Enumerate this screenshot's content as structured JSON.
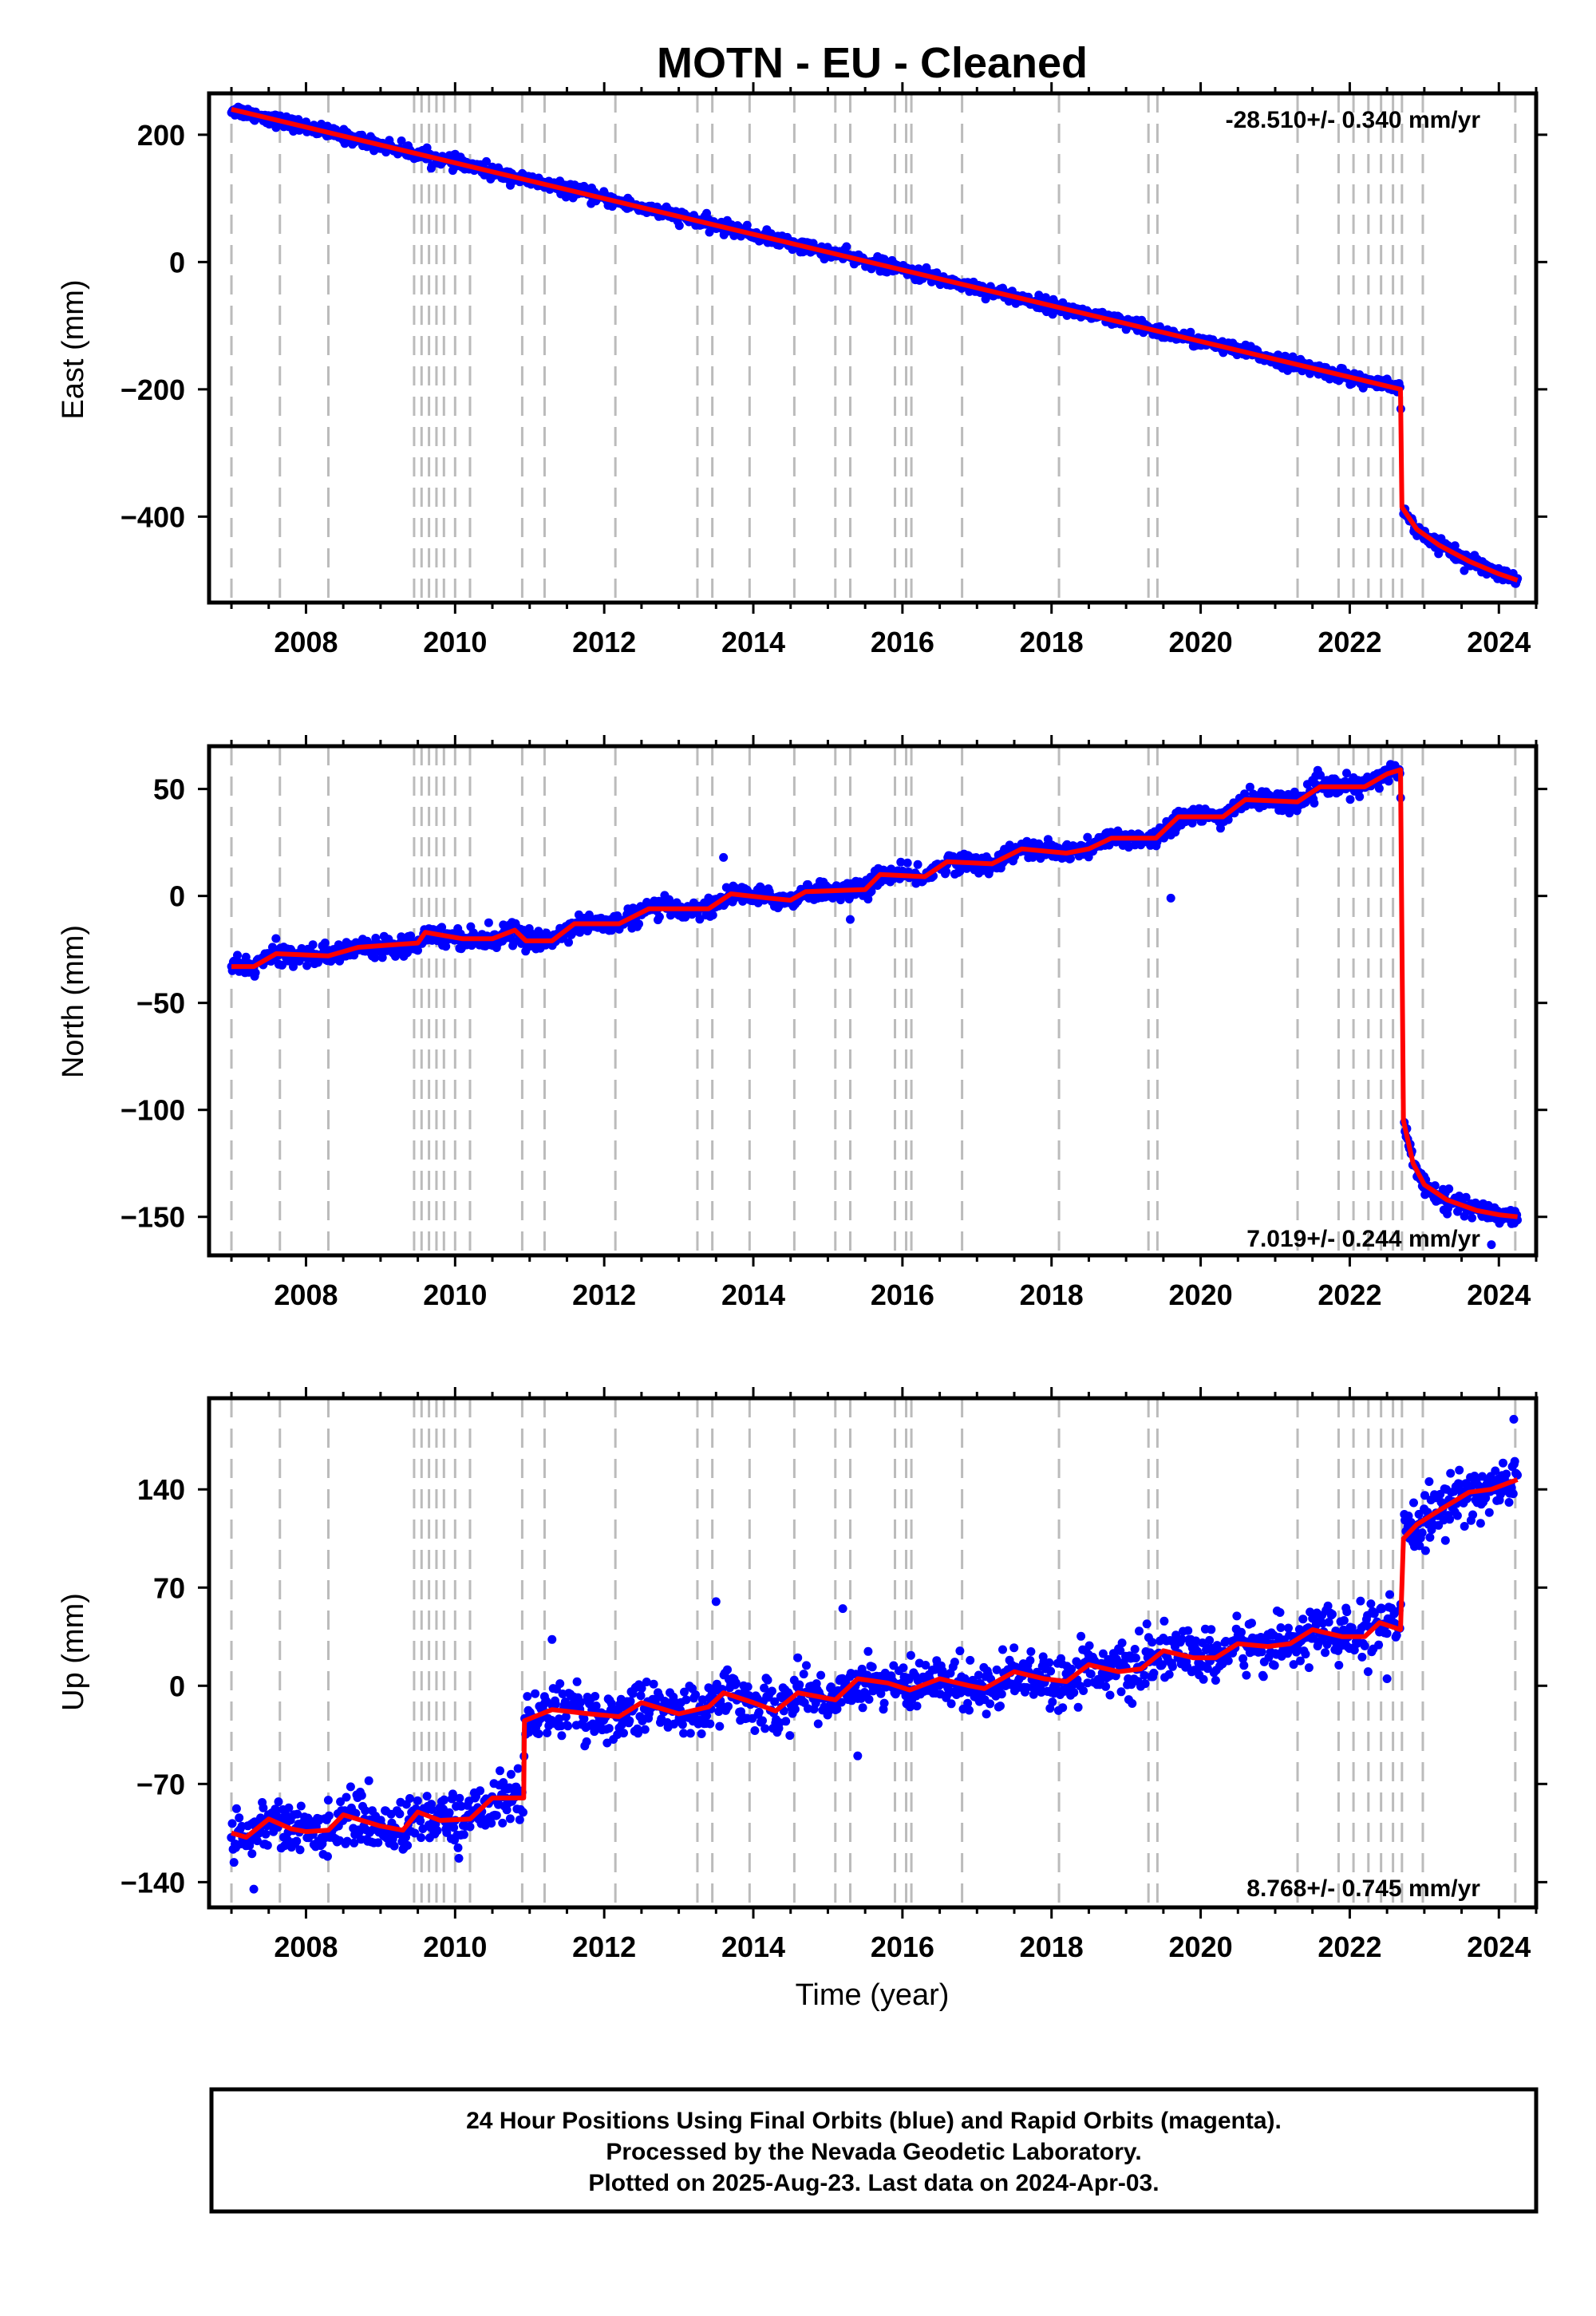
{
  "figure": {
    "title": "MOTN  - EU - Cleaned",
    "xlabel": "Time (year)",
    "footer": [
      "24 Hour Positions Using Final Orbits (blue) and Rapid Orbits (magenta).",
      "Processed by the Nevada Geodetic Laboratory.",
      "Plotted on 2025-Aug-23. Last data on 2024-Apr-03."
    ],
    "colors": {
      "data": "#0000ff",
      "model": "#ff0000",
      "event_lines": "#bbbbbb",
      "axes": "#000000"
    }
  },
  "chart_data": [
    {
      "type": "scatter",
      "component": "east",
      "ylabel": "East (mm)",
      "rate_text": "-28.510+/- 0.340 mm/yr",
      "rate_position": "top-right",
      "xlim": [
        2006.7,
        2024.5
      ],
      "ylim": [
        -535,
        265
      ],
      "x_ticks": [
        2008,
        2010,
        2012,
        2014,
        2016,
        2018,
        2020,
        2022,
        2024
      ],
      "y_ticks": [
        200,
        0,
        -200,
        -400
      ],
      "y_tick_labels": [
        "200",
        "0",
        "−200",
        "−400"
      ],
      "grid": false,
      "event_lines": [
        2007.0,
        2007.65,
        2008.3,
        2009.45,
        2009.55,
        2009.65,
        2009.75,
        2009.85,
        2010.0,
        2010.2,
        2010.9,
        2011.2,
        2012.15,
        2013.25,
        2013.45,
        2013.95,
        2014.55,
        2015.1,
        2015.3,
        2015.9,
        2016.05,
        2016.12,
        2016.8,
        2018.1,
        2019.3,
        2019.42,
        2021.3,
        2021.85,
        2022.05,
        2022.25,
        2022.42,
        2022.58,
        2022.7,
        2022.98,
        2024.22
      ],
      "model_knots": [
        [
          2007.0,
          240
        ],
        [
          2022.68,
          -200
        ],
        [
          2022.7,
          -385
        ],
        [
          2022.9,
          -420
        ],
        [
          2023.2,
          -445
        ],
        [
          2023.6,
          -470
        ],
        [
          2024.0,
          -490
        ],
        [
          2024.25,
          -500
        ]
      ],
      "series": [
        {
          "name": "24 Hour Positions Using Final Orbits (blue)",
          "kind": "points",
          "noise_mm": 5,
          "x_range": [
            2007.0,
            2024.25
          ]
        },
        {
          "kind": "model",
          "style": "line"
        }
      ]
    },
    {
      "type": "scatter",
      "component": "north",
      "ylabel": "North (mm)",
      "rate_text": "7.019+/- 0.244 mm/yr",
      "rate_position": "bottom-right",
      "xlim": [
        2006.7,
        2024.5
      ],
      "ylim": [
        -168,
        70
      ],
      "x_ticks": [
        2008,
        2010,
        2012,
        2014,
        2016,
        2018,
        2020,
        2022,
        2024
      ],
      "y_ticks": [
        50,
        0,
        -50,
        -100,
        -150
      ],
      "y_tick_labels": [
        "50",
        "0",
        "−50",
        "−100",
        "−150"
      ],
      "grid": false,
      "event_lines": [
        2007.0,
        2007.65,
        2008.3,
        2009.45,
        2009.55,
        2009.65,
        2009.75,
        2009.85,
        2010.0,
        2010.2,
        2010.9,
        2011.2,
        2012.15,
        2013.25,
        2013.45,
        2013.95,
        2014.55,
        2015.1,
        2015.3,
        2015.9,
        2016.05,
        2016.12,
        2016.8,
        2018.1,
        2019.3,
        2019.42,
        2021.3,
        2021.85,
        2022.05,
        2022.25,
        2022.42,
        2022.58,
        2022.7,
        2022.98,
        2024.22
      ],
      "model_knots": [
        [
          2007.0,
          -33
        ],
        [
          2007.3,
          -33
        ],
        [
          2007.6,
          -27
        ],
        [
          2008.3,
          -28
        ],
        [
          2008.7,
          -24
        ],
        [
          2009.5,
          -22
        ],
        [
          2009.6,
          -17
        ],
        [
          2010.1,
          -20
        ],
        [
          2010.5,
          -20
        ],
        [
          2010.8,
          -16
        ],
        [
          2010.95,
          -21
        ],
        [
          2011.3,
          -21
        ],
        [
          2011.6,
          -13
        ],
        [
          2012.2,
          -13
        ],
        [
          2012.6,
          -6
        ],
        [
          2013.4,
          -6
        ],
        [
          2013.7,
          1
        ],
        [
          2014.2,
          -1
        ],
        [
          2014.5,
          -2
        ],
        [
          2014.7,
          2
        ],
        [
          2015.5,
          3
        ],
        [
          2015.7,
          10
        ],
        [
          2016.3,
          9
        ],
        [
          2016.6,
          16
        ],
        [
          2017.2,
          15
        ],
        [
          2017.6,
          22
        ],
        [
          2018.2,
          20
        ],
        [
          2018.5,
          22
        ],
        [
          2018.8,
          27
        ],
        [
          2019.4,
          27
        ],
        [
          2019.7,
          37
        ],
        [
          2020.3,
          37
        ],
        [
          2020.6,
          45
        ],
        [
          2021.3,
          44
        ],
        [
          2021.6,
          51
        ],
        [
          2022.2,
          51
        ],
        [
          2022.5,
          57
        ],
        [
          2022.68,
          59
        ],
        [
          2022.72,
          -105
        ],
        [
          2022.85,
          -125
        ],
        [
          2023.0,
          -135
        ],
        [
          2023.3,
          -142
        ],
        [
          2023.7,
          -147
        ],
        [
          2024.0,
          -149
        ],
        [
          2024.25,
          -150
        ]
      ],
      "outliers": [
        [
          2013.6,
          18
        ],
        [
          2015.3,
          -11
        ],
        [
          2019.6,
          -1
        ],
        [
          2023.9,
          -163
        ]
      ],
      "series": [
        {
          "name": "24 Hour Positions Using Final Orbits (blue)",
          "kind": "points",
          "noise_mm": 2.2,
          "x_range": [
            2007.0,
            2024.25
          ]
        },
        {
          "kind": "model",
          "style": "line"
        }
      ]
    },
    {
      "type": "scatter",
      "component": "up",
      "ylabel": "Up (mm)",
      "rate_text": "8.768+/- 0.745 mm/yr",
      "rate_position": "bottom-right",
      "xlim": [
        2006.7,
        2024.5
      ],
      "ylim": [
        -158,
        205
      ],
      "x_ticks": [
        2008,
        2010,
        2012,
        2014,
        2016,
        2018,
        2020,
        2022,
        2024
      ],
      "y_ticks": [
        140,
        70,
        0,
        -70,
        -140
      ],
      "y_tick_labels": [
        "140",
        "70",
        "0",
        "−70",
        "−140"
      ],
      "grid": false,
      "event_lines": [
        2007.0,
        2007.65,
        2008.3,
        2009.45,
        2009.55,
        2009.65,
        2009.75,
        2009.85,
        2010.0,
        2010.2,
        2010.9,
        2011.2,
        2012.15,
        2013.25,
        2013.45,
        2013.95,
        2014.55,
        2015.1,
        2015.3,
        2015.9,
        2016.05,
        2016.12,
        2016.8,
        2018.1,
        2019.3,
        2019.42,
        2021.3,
        2021.85,
        2022.05,
        2022.25,
        2022.42,
        2022.58,
        2022.7,
        2022.98,
        2024.22
      ],
      "model_knots": [
        [
          2007.0,
          -105
        ],
        [
          2007.2,
          -108
        ],
        [
          2007.5,
          -95
        ],
        [
          2007.8,
          -102
        ],
        [
          2008.0,
          -104
        ],
        [
          2008.3,
          -103
        ],
        [
          2008.5,
          -92
        ],
        [
          2009.0,
          -100
        ],
        [
          2009.3,
          -103
        ],
        [
          2009.5,
          -90
        ],
        [
          2009.8,
          -96
        ],
        [
          2010.2,
          -95
        ],
        [
          2010.5,
          -80
        ],
        [
          2010.92,
          -80
        ],
        [
          2010.93,
          -25
        ],
        [
          2011.3,
          -17
        ],
        [
          2011.8,
          -20
        ],
        [
          2012.2,
          -22
        ],
        [
          2012.5,
          -12
        ],
        [
          2013.0,
          -20
        ],
        [
          2013.4,
          -15
        ],
        [
          2013.6,
          -5
        ],
        [
          2014.0,
          -12
        ],
        [
          2014.3,
          -18
        ],
        [
          2014.6,
          -5
        ],
        [
          2015.1,
          -10
        ],
        [
          2015.4,
          5
        ],
        [
          2015.8,
          2
        ],
        [
          2016.1,
          -3
        ],
        [
          2016.5,
          5
        ],
        [
          2016.9,
          0
        ],
        [
          2017.1,
          -2
        ],
        [
          2017.5,
          10
        ],
        [
          2017.9,
          5
        ],
        [
          2018.2,
          3
        ],
        [
          2018.5,
          15
        ],
        [
          2018.9,
          10
        ],
        [
          2019.2,
          12
        ],
        [
          2019.5,
          25
        ],
        [
          2019.9,
          20
        ],
        [
          2020.2,
          20
        ],
        [
          2020.5,
          30
        ],
        [
          2020.9,
          28
        ],
        [
          2021.2,
          30
        ],
        [
          2021.5,
          40
        ],
        [
          2021.9,
          35
        ],
        [
          2022.2,
          35
        ],
        [
          2022.4,
          45
        ],
        [
          2022.68,
          40
        ],
        [
          2022.72,
          105
        ],
        [
          2022.9,
          115
        ],
        [
          2023.2,
          125
        ],
        [
          2023.6,
          138
        ],
        [
          2023.9,
          140
        ],
        [
          2024.25,
          147
        ]
      ],
      "outliers": [
        [
          2007.3,
          -145
        ],
        [
          2011.3,
          33
        ],
        [
          2013.5,
          60
        ],
        [
          2015.2,
          55
        ],
        [
          2015.4,
          -50
        ],
        [
          2022.5,
          5
        ],
        [
          2024.2,
          190
        ]
      ],
      "series": [
        {
          "name": "24 Hour Positions Using Final Orbits (blue)",
          "kind": "points",
          "noise_mm": 9,
          "x_range": [
            2007.0,
            2024.25
          ]
        },
        {
          "kind": "model",
          "style": "line"
        }
      ]
    }
  ]
}
